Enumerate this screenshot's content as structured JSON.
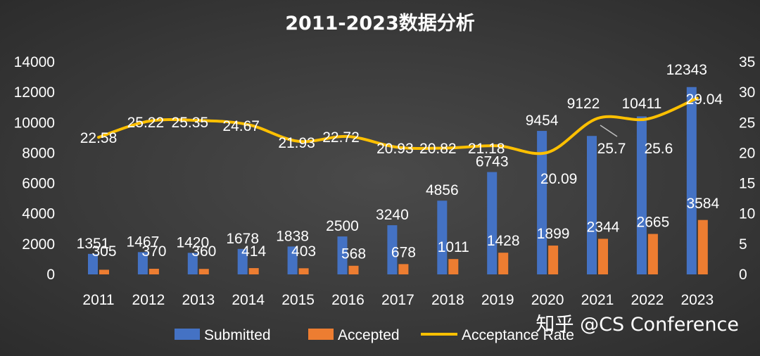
{
  "chart_data": {
    "type": "bar",
    "title": "2011-2023数据分析",
    "categories": [
      "2011",
      "2012",
      "2013",
      "2014",
      "2015",
      "2016",
      "2017",
      "2018",
      "2019",
      "2020",
      "2021",
      "2022",
      "2023"
    ],
    "series": [
      {
        "name": "Submitted",
        "kind": "bar",
        "axis": "left",
        "color": "#4472c4",
        "values": [
          1351,
          1467,
          1420,
          1678,
          1838,
          2500,
          3240,
          4856,
          6743,
          9454,
          9122,
          10411,
          12343
        ]
      },
      {
        "name": "Accepted",
        "kind": "bar",
        "axis": "left",
        "color": "#ed7d31",
        "values": [
          305,
          370,
          360,
          414,
          403,
          568,
          678,
          1011,
          1428,
          1899,
          2344,
          2665,
          3584
        ]
      },
      {
        "name": "Acceptance Rate",
        "kind": "line",
        "axis": "right",
        "color": "#ffc000",
        "values": [
          22.58,
          25.22,
          25.35,
          24.67,
          21.93,
          22.72,
          20.93,
          20.82,
          21.18,
          20.09,
          25.7,
          25.6,
          29.04
        ]
      }
    ],
    "y_left": {
      "min": 0,
      "max": 14000,
      "ticks": [
        "0",
        "2000",
        "4000",
        "6000",
        "8000",
        "10000",
        "12000",
        "14000"
      ]
    },
    "y_right": {
      "min": 0,
      "max": 35,
      "ticks": [
        "0",
        "5",
        "10",
        "15",
        "20",
        "25",
        "30",
        "35"
      ]
    },
    "grid": false,
    "legend": "bottom"
  },
  "watermark": "知乎 @CS Conference"
}
